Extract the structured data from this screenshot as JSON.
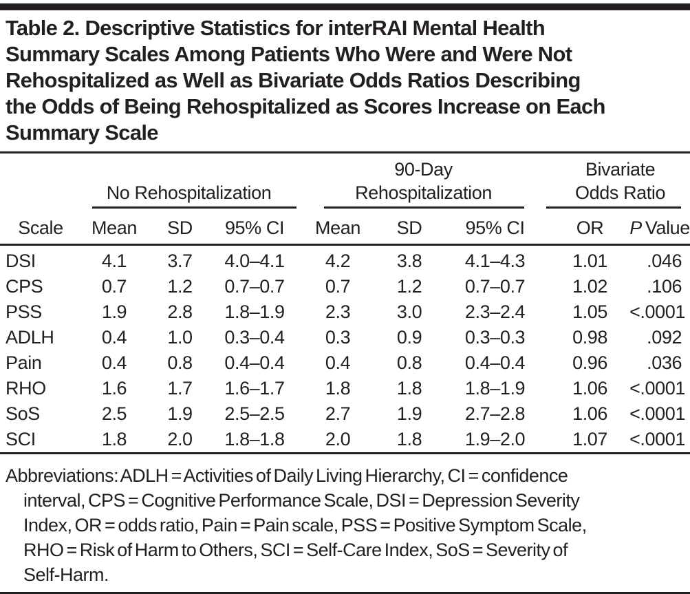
{
  "colors": {
    "ink": "#231f20",
    "background": "#ffffff"
  },
  "title": "Table 2. Descriptive Statistics for interRAI Mental Health\nSummary Scales Among Patients Who Were and Were Not\nRehospitalized as Well as Bivariate Odds Ratios Describing\nthe Odds of Being Rehospitalized as Scores Increase on Each\nSummary Scale",
  "table": {
    "groups": [
      {
        "label": "No Rehospitalization",
        "span": 3
      },
      {
        "label": "90-Day\nRehospitalization",
        "span": 3
      },
      {
        "label": "Bivariate\nOdds Ratio",
        "span": 2
      }
    ],
    "columns": [
      "Scale",
      "Mean",
      "SD",
      "95% CI",
      "Mean",
      "SD",
      "95% CI",
      "OR"
    ],
    "p_header": {
      "p": "P",
      "rest": "Value"
    },
    "rows": [
      {
        "scale": "DSI",
        "no_rehosp": {
          "mean": "4.1",
          "sd": "3.7",
          "ci": "4.0–4.1"
        },
        "rehosp_90day": {
          "mean": "4.2",
          "sd": "3.8",
          "ci": "4.1–4.3"
        },
        "odds": {
          "or": "1.01",
          "p_value": ".046"
        }
      },
      {
        "scale": "CPS",
        "no_rehosp": {
          "mean": "0.7",
          "sd": "1.2",
          "ci": "0.7–0.7"
        },
        "rehosp_90day": {
          "mean": "0.7",
          "sd": "1.2",
          "ci": "0.7–0.7"
        },
        "odds": {
          "or": "1.02",
          "p_value": ".106"
        }
      },
      {
        "scale": "PSS",
        "no_rehosp": {
          "mean": "1.9",
          "sd": "2.8",
          "ci": "1.8–1.9"
        },
        "rehosp_90day": {
          "mean": "2.3",
          "sd": "3.0",
          "ci": "2.3–2.4"
        },
        "odds": {
          "or": "1.05",
          "p_value": "<.0001"
        }
      },
      {
        "scale": "ADLH",
        "no_rehosp": {
          "mean": "0.4",
          "sd": "1.0",
          "ci": "0.3–0.4"
        },
        "rehosp_90day": {
          "mean": "0.3",
          "sd": "0.9",
          "ci": "0.3–0.3"
        },
        "odds": {
          "or": "0.98",
          "p_value": ".092"
        }
      },
      {
        "scale": "Pain",
        "no_rehosp": {
          "mean": "0.4",
          "sd": "0.8",
          "ci": "0.4–0.4"
        },
        "rehosp_90day": {
          "mean": "0.4",
          "sd": "0.8",
          "ci": "0.4–0.4"
        },
        "odds": {
          "or": "0.96",
          "p_value": ".036"
        }
      },
      {
        "scale": "RHO",
        "no_rehosp": {
          "mean": "1.6",
          "sd": "1.7",
          "ci": "1.6–1.7"
        },
        "rehosp_90day": {
          "mean": "1.8",
          "sd": "1.8",
          "ci": "1.8–1.9"
        },
        "odds": {
          "or": "1.06",
          "p_value": "<.0001"
        }
      },
      {
        "scale": "SoS",
        "no_rehosp": {
          "mean": "2.5",
          "sd": "1.9",
          "ci": "2.5–2.5"
        },
        "rehosp_90day": {
          "mean": "2.7",
          "sd": "1.9",
          "ci": "2.7–2.8"
        },
        "odds": {
          "or": "1.06",
          "p_value": "<.0001"
        }
      },
      {
        "scale": "SCI",
        "no_rehosp": {
          "mean": "1.8",
          "sd": "2.0",
          "ci": "1.8–1.8"
        },
        "rehosp_90day": {
          "mean": "2.0",
          "sd": "1.8",
          "ci": "1.9–2.0"
        },
        "odds": {
          "or": "1.07",
          "p_value": "<.0001"
        }
      }
    ]
  },
  "footnote": {
    "lines": [
      "Abbreviations: ADLH = Activities of Daily Living Hierarchy, CI = confidence",
      "interval, CPS = Cognitive Performance Scale, DSI = Depression Severity",
      "Index, OR = odds ratio, Pain = Pain scale, PSS = Positive Symptom Scale,",
      "RHO = Risk of Harm to Others, SCI = Self-Care Index, SoS = Severity of",
      "Self-Harm."
    ],
    "full_text": "Abbreviations: ADLH = Activities of Daily Living Hierarchy, CI = confidence interval, CPS = Cognitive Performance Scale, DSI = Depression Severity Index, OR = odds ratio, Pain = Pain scale, PSS = Positive Symptom Scale, RHO = Risk of Harm to Others, SCI = Self-Care Index, SoS = Severity of Self-Harm."
  }
}
